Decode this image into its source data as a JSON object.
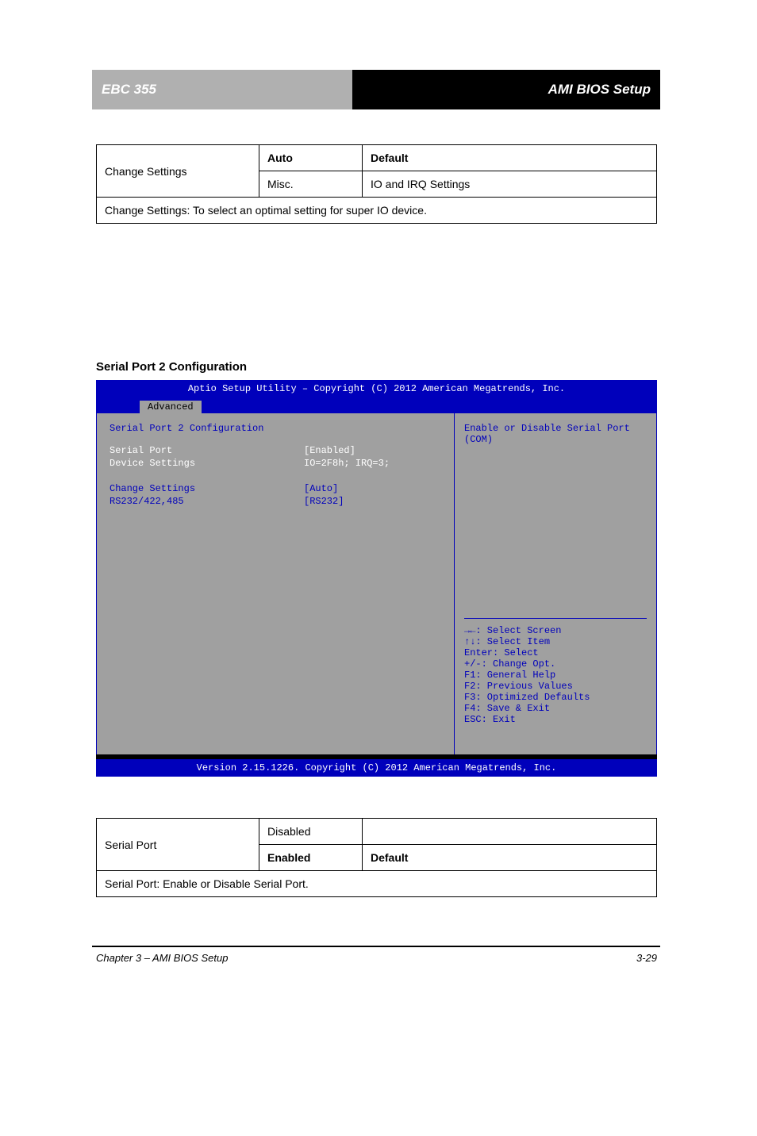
{
  "header": {
    "left": "EBC 355",
    "right": "AMI BIOS Setup"
  },
  "table1": {
    "rows": [
      {
        "setting": "Change Settings",
        "options": [
          {
            "value": "Auto",
            "bold": true,
            "desc1": "Default",
            "desc2": ""
          },
          {
            "value": "Misc.",
            "bold": false,
            "desc1": "",
            "desc2": "IO and IRQ Settings"
          }
        ]
      }
    ],
    "footer": "Change Settings: To select an optimal setting for super IO device."
  },
  "section1_title": "Serial Port 2 Configuration",
  "bios": {
    "title": "Aptio Setup Utility – Copyright (C) 2012 American Megatrends, Inc.",
    "tab": "Advanced",
    "heading": "Serial Port 2 Configuration",
    "items": [
      {
        "label": "Serial Port",
        "value": "[Enabled]",
        "lcolor": "white",
        "vcolor": "white"
      },
      {
        "label": "Device Settings",
        "value": "IO=2F8h; IRQ=3;",
        "lcolor": "white",
        "vcolor": "white"
      },
      {
        "label": "",
        "value": "",
        "lcolor": "white",
        "vcolor": "white"
      },
      {
        "label": "Change Settings",
        "value": "[Auto]",
        "lcolor": "blue",
        "vcolor": "blue"
      },
      {
        "label": "RS232/422,485",
        "value": "[RS232]",
        "lcolor": "blue",
        "vcolor": "blue"
      }
    ],
    "help_top": "Enable or Disable Serial Port (COM)",
    "help_keys": [
      "→←: Select Screen",
      "↑↓: Select Item",
      "Enter: Select",
      "+/-: Change Opt.",
      "F1: General Help",
      "F2: Previous Values",
      "F3: Optimized Defaults",
      "F4: Save & Exit",
      "ESC: Exit"
    ],
    "footer": "Version 2.15.1226. Copyright (C) 2012 American Megatrends, Inc."
  },
  "table2": {
    "rows": [
      {
        "setting": "Serial Port",
        "options": [
          {
            "value": "Disabled",
            "bold": false,
            "desc1": "",
            "desc2": ""
          },
          {
            "value": "Enabled",
            "bold": true,
            "desc1": "Default",
            "desc2": ""
          }
        ]
      }
    ],
    "footer": "Serial Port: Enable or Disable Serial Port."
  },
  "page_footer": {
    "left": "Chapter 3 – AMI BIOS Setup",
    "right": "3-29"
  },
  "colors": {
    "header_gray": "#b0b0b0",
    "bios_blue": "#0000bb",
    "bios_gray": "#a0a0a0"
  }
}
